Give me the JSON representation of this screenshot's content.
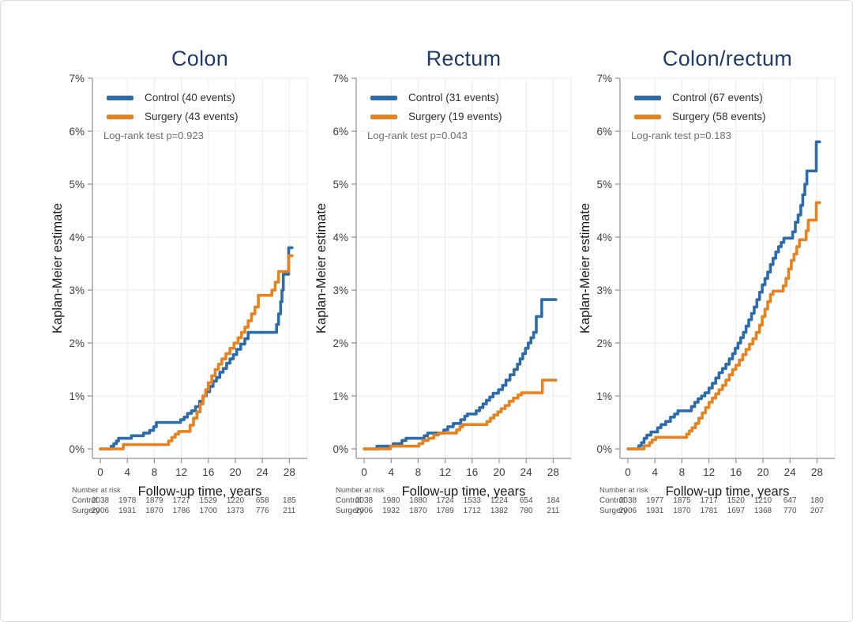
{
  "page": {
    "background": "#ffffff",
    "frame_border": "#dcdcdc"
  },
  "style": {
    "control_color": "#2c6cac",
    "surgery_color": "#e8821f",
    "title_color": "#1d3b6d",
    "grid_color": "#ebebeb",
    "axis_color": "#8f8f8f",
    "tick_text_color": "#3d3d3d"
  },
  "chart_data": [
    {
      "type": "line",
      "subtype": "kaplan-meier-step",
      "title": "Colon",
      "xlabel": "Follow-up time, years",
      "ylabel": "Kaplan-Meier estimate",
      "x_ticks": [
        0,
        4,
        8,
        12,
        16,
        20,
        24,
        28
      ],
      "y_ticks_pct": [
        0,
        1,
        2,
        3,
        4,
        5,
        6,
        7
      ],
      "xlim": [
        0,
        29.6
      ],
      "ylim_pct": [
        0,
        7
      ],
      "follow_up_end": 28.4,
      "grid": true,
      "legend_position": "top-left-inside",
      "log_rank_label": "Log-rank test p=0.923",
      "series": [
        {
          "name": "Control (40 events)",
          "color": "#2c6cac",
          "steps": [
            [
              0,
              0
            ],
            [
              1.6,
              0.05
            ],
            [
              2.0,
              0.1
            ],
            [
              2.4,
              0.15
            ],
            [
              2.7,
              0.2
            ],
            [
              4.6,
              0.25
            ],
            [
              6.4,
              0.3
            ],
            [
              7.3,
              0.35
            ],
            [
              7.9,
              0.42
            ],
            [
              8.3,
              0.5
            ],
            [
              11.9,
              0.55
            ],
            [
              12.4,
              0.6
            ],
            [
              12.9,
              0.67
            ],
            [
              13.5,
              0.72
            ],
            [
              14.1,
              0.8
            ],
            [
              14.7,
              0.9
            ],
            [
              15.2,
              1.0
            ],
            [
              15.7,
              1.08
            ],
            [
              16.2,
              1.18
            ],
            [
              16.7,
              1.28
            ],
            [
              17.2,
              1.35
            ],
            [
              17.7,
              1.45
            ],
            [
              18.2,
              1.52
            ],
            [
              18.7,
              1.62
            ],
            [
              19.2,
              1.7
            ],
            [
              19.7,
              1.78
            ],
            [
              20.2,
              1.88
            ],
            [
              20.8,
              1.98
            ],
            [
              21.4,
              2.08
            ],
            [
              21.9,
              2.2
            ],
            [
              26.1,
              2.35
            ],
            [
              26.4,
              2.55
            ],
            [
              26.7,
              2.78
            ],
            [
              26.9,
              3.0
            ],
            [
              27.1,
              3.3
            ],
            [
              27.9,
              3.8
            ]
          ]
        },
        {
          "name": "Surgery (43 events)",
          "color": "#e8821f",
          "steps": [
            [
              0,
              0
            ],
            [
              3.4,
              0.08
            ],
            [
              10.1,
              0.15
            ],
            [
              10.6,
              0.22
            ],
            [
              11.1,
              0.28
            ],
            [
              11.6,
              0.33
            ],
            [
              13.3,
              0.45
            ],
            [
              13.8,
              0.58
            ],
            [
              14.3,
              0.7
            ],
            [
              14.8,
              0.85
            ],
            [
              15.2,
              1.0
            ],
            [
              15.6,
              1.12
            ],
            [
              16.0,
              1.25
            ],
            [
              16.5,
              1.38
            ],
            [
              17.0,
              1.5
            ],
            [
              17.5,
              1.6
            ],
            [
              18.0,
              1.7
            ],
            [
              18.6,
              1.8
            ],
            [
              19.2,
              1.9
            ],
            [
              19.8,
              2.0
            ],
            [
              20.4,
              2.1
            ],
            [
              20.9,
              2.2
            ],
            [
              21.4,
              2.3
            ],
            [
              21.9,
              2.42
            ],
            [
              22.4,
              2.55
            ],
            [
              22.9,
              2.68
            ],
            [
              23.4,
              2.9
            ],
            [
              25.4,
              3.0
            ],
            [
              25.9,
              3.15
            ],
            [
              26.4,
              3.35
            ],
            [
              27.9,
              3.65
            ]
          ]
        }
      ],
      "number_at_risk": {
        "header": "Number at risk",
        "times": [
          0,
          4,
          8,
          12,
          16,
          20,
          24,
          28
        ],
        "rows": [
          {
            "label": "Control",
            "values": [
              2038,
              1978,
              1879,
              1727,
              1529,
              1220,
              658,
              185
            ]
          },
          {
            "label": "Surgery",
            "values": [
              2006,
              1931,
              1870,
              1786,
              1700,
              1373,
              776,
              211
            ]
          }
        ]
      }
    },
    {
      "type": "line",
      "subtype": "kaplan-meier-step",
      "title": "Rectum",
      "xlabel": "Follow-up time, years",
      "ylabel": "Kaplan-Meier estimate",
      "x_ticks": [
        0,
        4,
        8,
        12,
        16,
        20,
        24,
        28
      ],
      "y_ticks_pct": [
        0,
        1,
        2,
        3,
        4,
        5,
        6,
        7
      ],
      "xlim": [
        0,
        29.6
      ],
      "ylim_pct": [
        0,
        7
      ],
      "follow_up_end": 28.4,
      "grid": true,
      "legend_position": "top-left-inside",
      "log_rank_label": "Log-rank test p=0.043",
      "series": [
        {
          "name": "Control (31 events)",
          "color": "#2c6cac",
          "steps": [
            [
              0,
              0
            ],
            [
              1.9,
              0.05
            ],
            [
              4.3,
              0.1
            ],
            [
              5.6,
              0.16
            ],
            [
              6.2,
              0.2
            ],
            [
              8.9,
              0.25
            ],
            [
              9.4,
              0.3
            ],
            [
              11.8,
              0.36
            ],
            [
              12.4,
              0.42
            ],
            [
              13.2,
              0.48
            ],
            [
              14.3,
              0.55
            ],
            [
              14.9,
              0.62
            ],
            [
              15.3,
              0.66
            ],
            [
              16.6,
              0.72
            ],
            [
              17.1,
              0.78
            ],
            [
              17.6,
              0.85
            ],
            [
              18.1,
              0.92
            ],
            [
              18.6,
              0.98
            ],
            [
              19.1,
              1.05
            ],
            [
              19.9,
              1.12
            ],
            [
              20.5,
              1.2
            ],
            [
              21.0,
              1.3
            ],
            [
              21.6,
              1.4
            ],
            [
              22.2,
              1.5
            ],
            [
              22.7,
              1.6
            ],
            [
              23.1,
              1.7
            ],
            [
              23.5,
              1.8
            ],
            [
              23.9,
              1.9
            ],
            [
              24.3,
              2.0
            ],
            [
              24.7,
              2.1
            ],
            [
              25.1,
              2.2
            ],
            [
              25.5,
              2.5
            ],
            [
              26.3,
              2.82
            ]
          ]
        },
        {
          "name": "Surgery (19 events)",
          "color": "#e8821f",
          "steps": [
            [
              0,
              0
            ],
            [
              3.9,
              0.05
            ],
            [
              8.1,
              0.1
            ],
            [
              8.7,
              0.16
            ],
            [
              9.5,
              0.2
            ],
            [
              10.3,
              0.26
            ],
            [
              11.0,
              0.3
            ],
            [
              13.7,
              0.36
            ],
            [
              14.2,
              0.42
            ],
            [
              14.6,
              0.46
            ],
            [
              18.2,
              0.52
            ],
            [
              18.7,
              0.58
            ],
            [
              19.2,
              0.64
            ],
            [
              19.8,
              0.7
            ],
            [
              20.3,
              0.76
            ],
            [
              20.9,
              0.82
            ],
            [
              21.5,
              0.9
            ],
            [
              22.1,
              0.96
            ],
            [
              22.8,
              1.02
            ],
            [
              23.3,
              1.06
            ],
            [
              26.4,
              1.3
            ]
          ]
        }
      ],
      "number_at_risk": {
        "header": "Number at risk",
        "times": [
          0,
          4,
          8,
          12,
          16,
          20,
          24,
          28
        ],
        "rows": [
          {
            "label": "Control",
            "values": [
              2038,
              1980,
              1880,
              1724,
              1533,
              1224,
              654,
              184
            ]
          },
          {
            "label": "Surgery",
            "values": [
              2006,
              1932,
              1870,
              1789,
              1712,
              1382,
              780,
              211
            ]
          }
        ]
      }
    },
    {
      "type": "line",
      "subtype": "kaplan-meier-step",
      "title": "Colon/rectum",
      "xlabel": "Follow-up time, years",
      "ylabel": "Kaplan-Meier estimate",
      "x_ticks": [
        0,
        4,
        8,
        12,
        16,
        20,
        24,
        28
      ],
      "y_ticks_pct": [
        0,
        1,
        2,
        3,
        4,
        5,
        6,
        7
      ],
      "xlim": [
        0,
        29.6
      ],
      "ylim_pct": [
        0,
        7
      ],
      "follow_up_end": 28.4,
      "grid": true,
      "legend_position": "top-left-inside",
      "log_rank_label": "Log-rank test p=0.183",
      "series": [
        {
          "name": "Control (67 events)",
          "color": "#2c6cac",
          "steps": [
            [
              0,
              0
            ],
            [
              1.6,
              0.06
            ],
            [
              2.0,
              0.12
            ],
            [
              2.4,
              0.2
            ],
            [
              2.8,
              0.26
            ],
            [
              3.4,
              0.32
            ],
            [
              4.4,
              0.4
            ],
            [
              4.9,
              0.46
            ],
            [
              5.6,
              0.52
            ],
            [
              6.3,
              0.6
            ],
            [
              6.9,
              0.66
            ],
            [
              7.4,
              0.72
            ],
            [
              9.4,
              0.8
            ],
            [
              9.9,
              0.88
            ],
            [
              10.4,
              0.95
            ],
            [
              10.9,
              1.0
            ],
            [
              11.4,
              1.06
            ],
            [
              12.0,
              1.15
            ],
            [
              12.5,
              1.24
            ],
            [
              13.0,
              1.34
            ],
            [
              13.5,
              1.44
            ],
            [
              14.0,
              1.52
            ],
            [
              14.5,
              1.6
            ],
            [
              15.0,
              1.7
            ],
            [
              15.5,
              1.8
            ],
            [
              15.9,
              1.9
            ],
            [
              16.3,
              2.0
            ],
            [
              16.7,
              2.1
            ],
            [
              17.1,
              2.2
            ],
            [
              17.5,
              2.32
            ],
            [
              17.9,
              2.44
            ],
            [
              18.3,
              2.56
            ],
            [
              18.7,
              2.68
            ],
            [
              19.1,
              2.82
            ],
            [
              19.5,
              2.96
            ],
            [
              19.9,
              3.1
            ],
            [
              20.3,
              3.22
            ],
            [
              20.7,
              3.34
            ],
            [
              21.1,
              3.48
            ],
            [
              21.5,
              3.6
            ],
            [
              21.9,
              3.72
            ],
            [
              22.3,
              3.82
            ],
            [
              22.7,
              3.9
            ],
            [
              23.1,
              3.98
            ],
            [
              24.4,
              4.1
            ],
            [
              24.8,
              4.28
            ],
            [
              25.2,
              4.42
            ],
            [
              25.6,
              4.6
            ],
            [
              25.9,
              4.8
            ],
            [
              26.2,
              5.0
            ],
            [
              26.5,
              5.25
            ],
            [
              27.9,
              5.8
            ]
          ]
        },
        {
          "name": "Surgery (58 events)",
          "color": "#e8821f",
          "steps": [
            [
              0,
              0
            ],
            [
              2.4,
              0.06
            ],
            [
              3.2,
              0.12
            ],
            [
              3.6,
              0.17
            ],
            [
              4.1,
              0.22
            ],
            [
              8.7,
              0.28
            ],
            [
              9.1,
              0.34
            ],
            [
              9.5,
              0.4
            ],
            [
              10.0,
              0.48
            ],
            [
              10.5,
              0.58
            ],
            [
              11.0,
              0.68
            ],
            [
              11.5,
              0.78
            ],
            [
              12.0,
              0.88
            ],
            [
              12.5,
              0.96
            ],
            [
              13.0,
              1.04
            ],
            [
              13.5,
              1.12
            ],
            [
              14.0,
              1.2
            ],
            [
              14.5,
              1.3
            ],
            [
              15.0,
              1.4
            ],
            [
              15.5,
              1.5
            ],
            [
              16.0,
              1.58
            ],
            [
              16.5,
              1.68
            ],
            [
              17.0,
              1.78
            ],
            [
              17.5,
              1.88
            ],
            [
              18.0,
              1.98
            ],
            [
              18.5,
              2.08
            ],
            [
              19.0,
              2.2
            ],
            [
              19.5,
              2.34
            ],
            [
              19.9,
              2.5
            ],
            [
              20.3,
              2.64
            ],
            [
              20.7,
              2.78
            ],
            [
              21.1,
              2.92
            ],
            [
              21.5,
              2.98
            ],
            [
              23.0,
              3.08
            ],
            [
              23.4,
              3.22
            ],
            [
              23.8,
              3.4
            ],
            [
              24.2,
              3.56
            ],
            [
              24.6,
              3.68
            ],
            [
              25.0,
              3.82
            ],
            [
              25.4,
              3.95
            ],
            [
              26.4,
              4.12
            ],
            [
              26.7,
              4.32
            ],
            [
              27.9,
              4.65
            ]
          ]
        }
      ],
      "number_at_risk": {
        "header": "Number at risk",
        "times": [
          0,
          4,
          8,
          12,
          16,
          20,
          24,
          28
        ],
        "rows": [
          {
            "label": "Control",
            "values": [
              2038,
              1977,
              1875,
              1717,
              1520,
              1210,
              647,
              180
            ]
          },
          {
            "label": "Surgery",
            "values": [
              2006,
              1931,
              1870,
              1781,
              1697,
              1368,
              770,
              207
            ]
          }
        ]
      }
    }
  ]
}
